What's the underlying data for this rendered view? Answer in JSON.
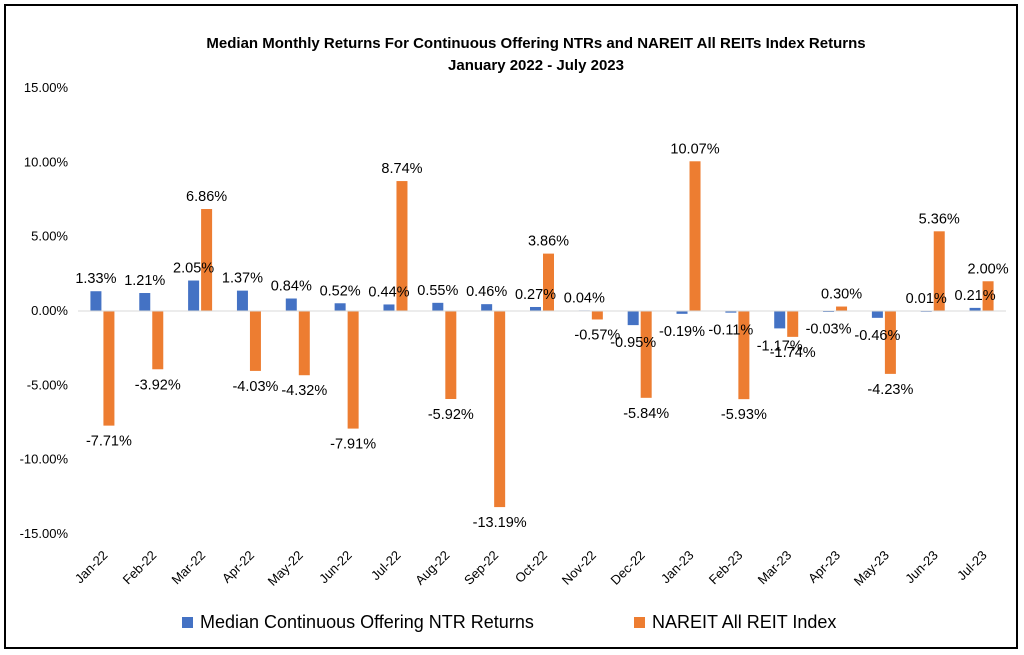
{
  "chart_data": {
    "type": "bar",
    "title": "Median Monthly Returns For Continuous Offering NTRs and NAREIT All REITs Index Returns",
    "subtitle": "January 2022 - July 2023",
    "xlabel": "",
    "ylabel": "",
    "ylim": [
      -15,
      15
    ],
    "yticks": [
      "15.00%",
      "10.00%",
      "5.00%",
      "0.00%",
      "-5.00%",
      "-10.00%",
      "-15.00%"
    ],
    "ytick_values": [
      15,
      10,
      5,
      0,
      -5,
      -10,
      -15
    ],
    "categories": [
      "Jan-22",
      "Feb-22",
      "Mar-22",
      "Apr-22",
      "May-22",
      "Jun-22",
      "Jul-22",
      "Aug-22",
      "Sep-22",
      "Oct-22",
      "Nov-22",
      "Dec-22",
      "Jan-23",
      "Feb-23",
      "Mar-23",
      "Apr-23",
      "May-23",
      "Jun-23",
      "Jul-23"
    ],
    "series": [
      {
        "name": "Median Continuous Offering NTR Returns",
        "color": "#4472C4",
        "values": [
          1.33,
          1.21,
          2.05,
          1.37,
          0.84,
          0.52,
          0.44,
          0.55,
          0.46,
          0.27,
          0.04,
          -0.95,
          -0.19,
          -0.11,
          -1.17,
          -0.03,
          -0.46,
          0.01,
          0.21
        ],
        "labels": [
          "1.33%",
          "1.21%",
          "2.05%",
          "1.37%",
          "0.84%",
          "0.52%",
          "0.44%",
          "0.55%",
          "0.46%",
          "0.27%",
          "0.04%",
          "-0.95%",
          "-0.19%",
          "-0.11%",
          "-1.17%",
          "-0.03%",
          "-0.46%",
          "0.01%",
          "0.21%"
        ]
      },
      {
        "name": "NAREIT All REIT Index",
        "color": "#ED7D31",
        "values": [
          -7.71,
          -3.92,
          6.86,
          -4.03,
          -4.32,
          -7.91,
          8.74,
          -5.92,
          -13.19,
          3.86,
          -0.57,
          -5.84,
          10.07,
          -5.93,
          -1.74,
          0.3,
          -4.23,
          5.36,
          2.0
        ],
        "labels": [
          "-7.71%",
          "-3.92%",
          "6.86%",
          "-4.03%",
          "-4.32%",
          "-7.91%",
          "8.74%",
          "-5.92%",
          "-13.19%",
          "3.86%",
          "-0.57%",
          "-5.84%",
          "10.07%",
          "-5.93%",
          "-1.74%",
          "0.30%",
          "-4.23%",
          "5.36%",
          "2.00%"
        ]
      }
    ],
    "grid": false,
    "legend_position": "bottom"
  }
}
